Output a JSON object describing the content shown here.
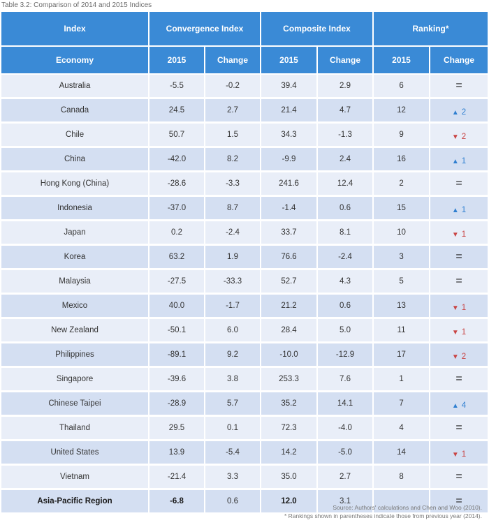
{
  "caption": "Table 3.2: Comparison of 2014 and 2015 Indices",
  "header_groups": {
    "index": "Index",
    "convergence": "Convergence Index",
    "composite": "Composite Index",
    "ranking": "Ranking*"
  },
  "sub_headers": {
    "economy": "Economy",
    "conv_2015": "2015",
    "conv_change": "Change",
    "comp_2015": "2015",
    "comp_change": "Change",
    "rank_2015": "2015",
    "rank_change": "Change"
  },
  "rows": [
    {
      "economy": "Australia",
      "conv_2015": "-5.5",
      "conv_change": "-0.2",
      "comp_2015": "39.4",
      "comp_change": "2.9",
      "rank_2015": "6",
      "rank_change": {
        "dir": "eq",
        "symbol": "=",
        "value": ""
      }
    },
    {
      "economy": "Canada",
      "conv_2015": "24.5",
      "conv_change": "2.7",
      "comp_2015": "21.4",
      "comp_change": "4.7",
      "rank_2015": "12",
      "rank_change": {
        "dir": "up",
        "symbol": "▲",
        "value": "2"
      }
    },
    {
      "economy": "Chile",
      "conv_2015": "50.7",
      "conv_change": "1.5",
      "comp_2015": "34.3",
      "comp_change": "-1.3",
      "rank_2015": "9",
      "rank_change": {
        "dir": "down",
        "symbol": "▼",
        "value": "2"
      }
    },
    {
      "economy": "China",
      "conv_2015": "-42.0",
      "conv_change": "8.2",
      "comp_2015": "-9.9",
      "comp_change": "2.4",
      "rank_2015": "16",
      "rank_change": {
        "dir": "up",
        "symbol": "▲",
        "value": "1"
      }
    },
    {
      "economy": "Hong Kong (China)",
      "conv_2015": "-28.6",
      "conv_change": "-3.3",
      "comp_2015": "241.6",
      "comp_change": "12.4",
      "rank_2015": "2",
      "rank_change": {
        "dir": "eq",
        "symbol": "=",
        "value": ""
      }
    },
    {
      "economy": "Indonesia",
      "conv_2015": "-37.0",
      "conv_change": "8.7",
      "comp_2015": "-1.4",
      "comp_change": "0.6",
      "rank_2015": "15",
      "rank_change": {
        "dir": "up",
        "symbol": "▲",
        "value": "1"
      }
    },
    {
      "economy": "Japan",
      "conv_2015": "0.2",
      "conv_change": "-2.4",
      "comp_2015": "33.7",
      "comp_change": "8.1",
      "rank_2015": "10",
      "rank_change": {
        "dir": "down",
        "symbol": "▼",
        "value": "1"
      }
    },
    {
      "economy": "Korea",
      "conv_2015": "63.2",
      "conv_change": "1.9",
      "comp_2015": "76.6",
      "comp_change": "-2.4",
      "rank_2015": "3",
      "rank_change": {
        "dir": "eq",
        "symbol": "=",
        "value": ""
      }
    },
    {
      "economy": "Malaysia",
      "conv_2015": "-27.5",
      "conv_change": "-33.3",
      "comp_2015": "52.7",
      "comp_change": "4.3",
      "rank_2015": "5",
      "rank_change": {
        "dir": "eq",
        "symbol": "=",
        "value": ""
      }
    },
    {
      "economy": "Mexico",
      "conv_2015": "40.0",
      "conv_change": "-1.7",
      "comp_2015": "21.2",
      "comp_change": "0.6",
      "rank_2015": "13",
      "rank_change": {
        "dir": "down",
        "symbol": "▼",
        "value": "1"
      }
    },
    {
      "economy": "New Zealand",
      "conv_2015": "-50.1",
      "conv_change": "6.0",
      "comp_2015": "28.4",
      "comp_change": "5.0",
      "rank_2015": "11",
      "rank_change": {
        "dir": "down",
        "symbol": "▼",
        "value": "1"
      }
    },
    {
      "economy": "Philippines",
      "conv_2015": "-89.1",
      "conv_change": "9.2",
      "comp_2015": "-10.0",
      "comp_change": "-12.9",
      "rank_2015": "17",
      "rank_change": {
        "dir": "down",
        "symbol": "▼",
        "value": "2"
      }
    },
    {
      "economy": "Singapore",
      "conv_2015": "-39.6",
      "conv_change": "3.8",
      "comp_2015": "253.3",
      "comp_change": "7.6",
      "rank_2015": "1",
      "rank_change": {
        "dir": "eq",
        "symbol": "=",
        "value": ""
      }
    },
    {
      "economy": "Chinese Taipei",
      "conv_2015": "-28.9",
      "conv_change": "5.7",
      "comp_2015": "35.2",
      "comp_change": "14.1",
      "rank_2015": "7",
      "rank_change": {
        "dir": "up",
        "symbol": "▲",
        "value": "4"
      }
    },
    {
      "economy": "Thailand",
      "conv_2015": "29.5",
      "conv_change": "0.1",
      "comp_2015": "72.3",
      "comp_change": "-4.0",
      "rank_2015": "4",
      "rank_change": {
        "dir": "eq",
        "symbol": "=",
        "value": ""
      }
    },
    {
      "economy": "United States",
      "conv_2015": "13.9",
      "conv_change": "-5.4",
      "comp_2015": "14.2",
      "comp_change": "-5.0",
      "rank_2015": "14",
      "rank_change": {
        "dir": "down",
        "symbol": "▼",
        "value": "1"
      }
    },
    {
      "economy": "Vietnam",
      "conv_2015": "-21.4",
      "conv_change": "3.3",
      "comp_2015": "35.0",
      "comp_change": "2.7",
      "rank_2015": "8",
      "rank_change": {
        "dir": "eq",
        "symbol": "=",
        "value": ""
      }
    }
  ],
  "total_row": {
    "economy": "Asia-Pacific Region",
    "conv_2015": "-6.8",
    "conv_change": "0.6",
    "comp_2015": "12.0",
    "comp_change": "3.1",
    "rank_2015": "",
    "rank_change": {
      "dir": "eq",
      "symbol": "=",
      "value": ""
    }
  },
  "notes": {
    "source": "Source: Authors' calculations and Chen and Woo (2010).",
    "footnote": "* Rankings shown in parentheses indicate those from previous year (2014)."
  },
  "colors": {
    "header_blue": "#3a8ad6",
    "row_light": "#e9eef8",
    "row_dark": "#d4dff2",
    "up_arrow": "#2f7fd0",
    "down_arrow": "#c94545"
  }
}
